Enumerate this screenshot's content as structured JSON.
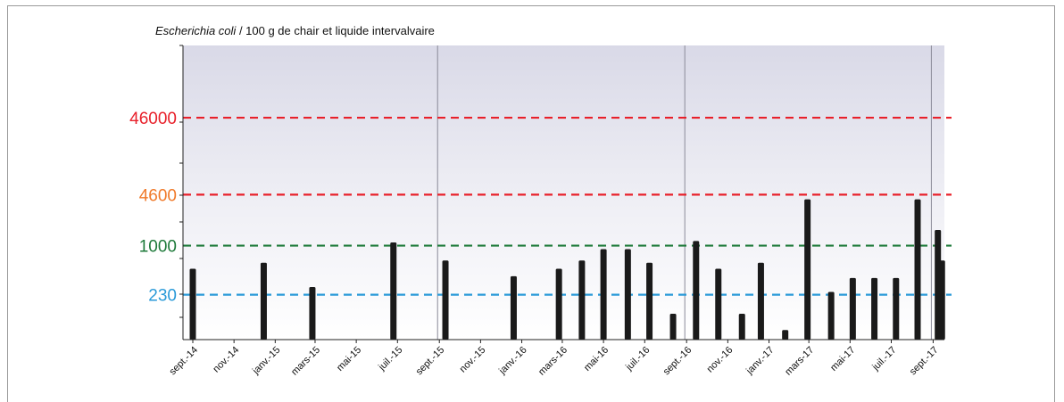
{
  "chart_data": {
    "type": "bar",
    "title_italic": "Escherichia coli",
    "title_rest": " / 100 g de chair et liquide intervalvaire",
    "y_scale": "log",
    "ylim": [
      60,
      400000
    ],
    "thresholds": [
      {
        "label": "46000",
        "value": 46000,
        "color": "#e8202a",
        "line_color": "#e8202a"
      },
      {
        "label": "4600",
        "value": 4600,
        "color": "#f07a2a",
        "line_color": "#e8202a"
      },
      {
        "label": "1000",
        "value": 1000,
        "color": "#1e7a3a",
        "line_color": "#1e7a3a"
      },
      {
        "label": "230",
        "value": 230,
        "color": "#2a9ad8",
        "line_color": "#2a9ad8"
      }
    ],
    "x_start": "2014-09-01",
    "x_end": "2017-09-15",
    "x_tick_labels": [
      {
        "label": "sept.-14",
        "date": "2014-09-01"
      },
      {
        "label": "nov.-14",
        "date": "2014-11-01"
      },
      {
        "label": "janv.-15",
        "date": "2015-01-01"
      },
      {
        "label": "mars-15",
        "date": "2015-03-01"
      },
      {
        "label": "mai-15",
        "date": "2015-05-01"
      },
      {
        "label": "juil.-15",
        "date": "2015-07-01"
      },
      {
        "label": "sept.-15",
        "date": "2015-09-01"
      },
      {
        "label": "nov.-15",
        "date": "2015-11-01"
      },
      {
        "label": "janv.-16",
        "date": "2016-01-01"
      },
      {
        "label": "mars-16",
        "date": "2016-03-01"
      },
      {
        "label": "mai-16",
        "date": "2016-05-01"
      },
      {
        "label": "juil.-16",
        "date": "2016-07-01"
      },
      {
        "label": "sept.-16",
        "date": "2016-09-01"
      },
      {
        "label": "nov.-16",
        "date": "2016-11-01"
      },
      {
        "label": "janv.-17",
        "date": "2017-01-01"
      },
      {
        "label": "mars-17",
        "date": "2017-03-01"
      },
      {
        "label": "mai-17",
        "date": "2017-05-01"
      },
      {
        "label": "juil.-17",
        "date": "2017-07-01"
      },
      {
        "label": "sept.-17",
        "date": "2017-09-01"
      }
    ],
    "year_separators": [
      "2015-09-01",
      "2016-09-01",
      "2017-09-01"
    ],
    "bars": [
      {
        "date": "2014-09-01",
        "value": 500
      },
      {
        "date": "2014-12-15",
        "value": 600
      },
      {
        "date": "2015-02-25",
        "value": 290
      },
      {
        "date": "2015-06-25",
        "value": 1100
      },
      {
        "date": "2015-09-10",
        "value": 640
      },
      {
        "date": "2015-12-20",
        "value": 400
      },
      {
        "date": "2016-02-25",
        "value": 500
      },
      {
        "date": "2016-03-30",
        "value": 640
      },
      {
        "date": "2016-05-01",
        "value": 900
      },
      {
        "date": "2016-06-06",
        "value": 900
      },
      {
        "date": "2016-07-08",
        "value": 600
      },
      {
        "date": "2016-08-12",
        "value": 130
      },
      {
        "date": "2016-09-15",
        "value": 1150
      },
      {
        "date": "2016-10-18",
        "value": 500
      },
      {
        "date": "2016-11-22",
        "value": 130
      },
      {
        "date": "2016-12-20",
        "value": 600
      },
      {
        "date": "2017-01-25",
        "value": 80
      },
      {
        "date": "2017-02-27",
        "value": 4000
      },
      {
        "date": "2017-04-03",
        "value": 250
      },
      {
        "date": "2017-05-05",
        "value": 380
      },
      {
        "date": "2017-06-06",
        "value": 380
      },
      {
        "date": "2017-07-08",
        "value": 380
      },
      {
        "date": "2017-08-09",
        "value": 4000
      },
      {
        "date": "2017-09-08",
        "value": 1600
      },
      {
        "date": "2017-09-14",
        "value": 640
      }
    ]
  }
}
